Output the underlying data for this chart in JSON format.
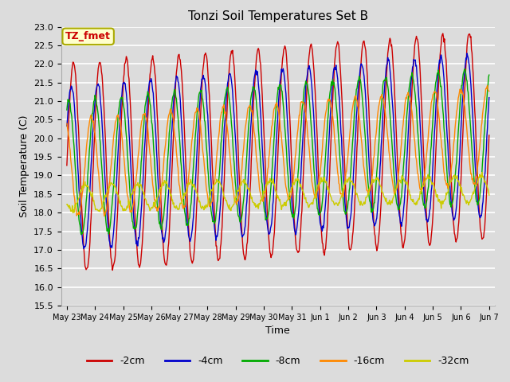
{
  "title": "Tonzi Soil Temperatures Set B",
  "xlabel": "Time",
  "ylabel": "Soil Temperature (C)",
  "ylim": [
    15.5,
    23.0
  ],
  "background_color": "#dcdcdc",
  "plot_bg_color": "#dcdcdc",
  "grid_color": "#ffffff",
  "annotation_text": "TZ_fmet",
  "annotation_box_color": "#ffffcc",
  "annotation_border_color": "#aaaa00",
  "annotation_text_color": "#cc0000",
  "series_colors": [
    "#cc0000",
    "#0000cc",
    "#00aa00",
    "#ff8800",
    "#cccc00"
  ],
  "series_labels": [
    "-2cm",
    "-4cm",
    "-8cm",
    "-16cm",
    "-32cm"
  ],
  "n_days": 16,
  "samples_per_day": 48,
  "start_day": 23,
  "start_month": 5,
  "xtick_labels": [
    "May 23",
    "May 24",
    "May 25",
    "May 26",
    "May 27",
    "May 28",
    "May 29",
    "May 30",
    "May 31",
    "Jun 1",
    "Jun 2",
    "Jun 3",
    "Jun 4",
    "Jun 5",
    "Jun 6",
    "Jun 7"
  ],
  "amp": [
    2.8,
    2.2,
    1.8,
    1.3,
    0.35
  ],
  "phase_shift": [
    0.0,
    0.08,
    0.18,
    0.32,
    0.55
  ],
  "base_temp": [
    19.2,
    19.2,
    19.2,
    19.2,
    18.4
  ],
  "trend": [
    0.055,
    0.055,
    0.055,
    0.055,
    0.015
  ]
}
